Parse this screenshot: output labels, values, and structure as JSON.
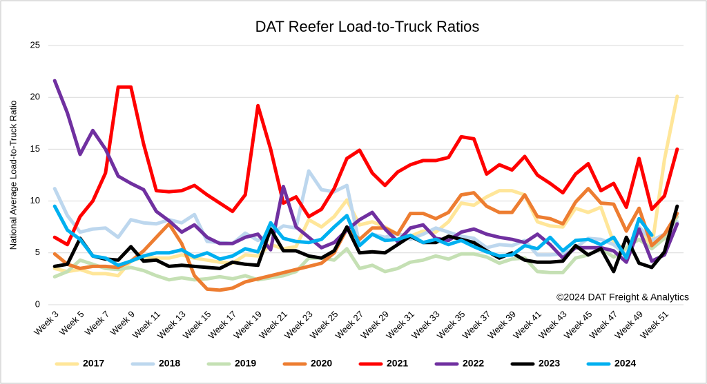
{
  "chart_data": {
    "type": "line",
    "title": "DAT Reefer Load-to-Truck Ratios",
    "y_label": "National Average Load-to-Truck Ratio",
    "annotation": "©2024 DAT Freight & Analytics",
    "categories": [
      "Week 3",
      null,
      "Week 5",
      null,
      "Week 7",
      null,
      "Week 9",
      null,
      "Week 11",
      null,
      "Week 13",
      null,
      "Week 15",
      null,
      "Week 17",
      null,
      "Week 19",
      null,
      "Week 21",
      null,
      "Week 23",
      null,
      "Week 25",
      null,
      "Week 27",
      null,
      "Week 29",
      null,
      "Week 31",
      null,
      "Week 33",
      null,
      "Week 35",
      null,
      "Week 37",
      null,
      "Week 39",
      null,
      "Week 41",
      null,
      "Week 43",
      null,
      "Week 45",
      null,
      "Week 47",
      null,
      "Week 49",
      null,
      "Week 51",
      null
    ],
    "ylim": [
      0,
      25
    ],
    "yticks": [
      0,
      5,
      10,
      15,
      20,
      25
    ],
    "grid": true,
    "legend": "bottom",
    "series": [
      {
        "name": "2017",
        "color": "#ffe699",
        "values": [
          3.5,
          3.2,
          3.4,
          3,
          3,
          2.8,
          4.2,
          4.6,
          4.5,
          4.5,
          4.8,
          4.5,
          4.3,
          4.1,
          4,
          4.8,
          4.7,
          5.8,
          5.4,
          5.6,
          8.2,
          7.5,
          8.5,
          10.1,
          7.7,
          8,
          7.5,
          6.8,
          6.6,
          7.1,
          7,
          8,
          9.8,
          9.6,
          10.4,
          11,
          11,
          10.6,
          8,
          7.6,
          7.5,
          9.3,
          8.9,
          9.4,
          6,
          5.3,
          7.5,
          5.5,
          14,
          20.1
        ]
      },
      {
        "name": "2018",
        "color": "#bdd7ee",
        "values": [
          11.2,
          8.6,
          7,
          7.3,
          7.4,
          6.5,
          8.2,
          7.9,
          7.8,
          8.2,
          7.9,
          8.7,
          6.1,
          6,
          5.9,
          6.9,
          6.2,
          6.8,
          7.6,
          7.4,
          12.9,
          11.1,
          10.9,
          11.5,
          5.8,
          6.8,
          6.5,
          6.9,
          6.3,
          6.8,
          7.4,
          7,
          6.6,
          6.4,
          5.5,
          5.8,
          5.7,
          6.2,
          4.8,
          4.8,
          4.9,
          5.5,
          6.4,
          6.3,
          5.8,
          4.8,
          7.5,
          6.2,
          6.8,
          8
        ]
      },
      {
        "name": "2019",
        "color": "#c5e0b4",
        "values": [
          2.7,
          3.2,
          4.3,
          3.9,
          3.5,
          3.4,
          3.6,
          3.3,
          2.8,
          2.4,
          2.6,
          2.4,
          2.5,
          2.7,
          2.5,
          2.8,
          2.4,
          2.6,
          2.8,
          3.2,
          4.5,
          4.5,
          4.3,
          5.4,
          3.5,
          3.8,
          3.2,
          3.5,
          4.1,
          4.3,
          4.7,
          4.4,
          4.9,
          4.9,
          4.6,
          4,
          4.4,
          4.5,
          3.2,
          3.1,
          3.1,
          4.5,
          4.8,
          5.4,
          4.6,
          5.5,
          6.3,
          5.4,
          6.4,
          8.5
        ]
      },
      {
        "name": "2020",
        "color": "#ed7d31",
        "values": [
          4.9,
          3.9,
          3.5,
          3.7,
          3.7,
          3.6,
          4.2,
          5.2,
          6.5,
          7.8,
          5.9,
          2.8,
          1.5,
          1.4,
          1.6,
          2.2,
          2.5,
          2.8,
          3.1,
          3.4,
          3.7,
          4,
          5,
          7.3,
          6.3,
          7.4,
          7.4,
          6.8,
          8.8,
          8.8,
          8.3,
          8.9,
          10.6,
          10.8,
          9.5,
          8.9,
          8.9,
          10.6,
          8.5,
          8.3,
          7.8,
          9.9,
          11.2,
          9.8,
          9.7,
          7.1,
          9.3,
          5.7,
          6.8,
          8.8
        ]
      },
      {
        "name": "2021",
        "color": "#ff0000",
        "values": [
          6.5,
          5.8,
          8.5,
          10,
          12.7,
          21,
          21,
          15.5,
          11,
          10.9,
          11,
          11.5,
          10.6,
          9.8,
          9,
          10.6,
          19.2,
          15,
          9.8,
          10.4,
          8.5,
          9.2,
          11.2,
          14.1,
          14.9,
          12.7,
          11.5,
          12.8,
          13.5,
          13.9,
          13.9,
          14.2,
          16.2,
          16,
          12.6,
          13.5,
          13,
          14.3,
          12.5,
          11.7,
          10.8,
          12.6,
          13.6,
          11,
          11.7,
          9.4,
          14.1,
          9.2,
          10.5,
          15
        ]
      },
      {
        "name": "2022",
        "color": "#7030a0",
        "values": [
          21.6,
          18.5,
          14.5,
          16.8,
          15,
          12.4,
          11.7,
          11.1,
          9,
          8.1,
          7,
          7.7,
          6.5,
          5.9,
          5.9,
          6.5,
          6.8,
          5.3,
          11.4,
          7.5,
          6.5,
          5.5,
          6,
          7.2,
          8.2,
          8.9,
          7.3,
          6.1,
          7.4,
          7.7,
          6.4,
          6.2,
          7,
          7.3,
          6.8,
          6.5,
          6.3,
          6,
          6.8,
          5.8,
          4.5,
          5.5,
          5.5,
          5.5,
          5.2,
          4.1,
          7.3,
          4.2,
          4.8,
          7.8
        ]
      },
      {
        "name": "2023",
        "color": "#000000",
        "values": [
          3.7,
          3.9,
          6.4,
          4.7,
          4.4,
          4.3,
          5.6,
          4.2,
          4.3,
          3.7,
          3.8,
          3.7,
          3.6,
          3.5,
          4.1,
          3.9,
          3.8,
          7.3,
          5.2,
          5.2,
          4.7,
          4.5,
          5.2,
          7.5,
          5,
          5.1,
          5,
          5.8,
          6.6,
          6,
          6,
          6.6,
          6.3,
          6,
          5.2,
          4.5,
          5,
          4.3,
          4.1,
          4.1,
          4.2,
          5.7,
          4.8,
          5.4,
          3.2,
          6.5,
          4,
          3.6,
          5.1,
          9.5
        ]
      },
      {
        "name": "2024",
        "color": "#00b0f0",
        "values": [
          9.5,
          7.2,
          6.3,
          4.7,
          4.5,
          3.8,
          4.2,
          4.7,
          5,
          5,
          5.3,
          4.6,
          5,
          4.4,
          4.7,
          5.4,
          5.1,
          7.9,
          6.4,
          6.1,
          6,
          6.3,
          7.5,
          8.6,
          5.7,
          6.8,
          6.2,
          6.3,
          6.7,
          6,
          6.3,
          5.8,
          6.2,
          5.6,
          5.1,
          4.7,
          4.8,
          5.7,
          5.4,
          6.5,
          5.2,
          6.2,
          6.3,
          5.8,
          6.5,
          4.5,
          8.3,
          6.7,
          null,
          null
        ]
      }
    ]
  }
}
